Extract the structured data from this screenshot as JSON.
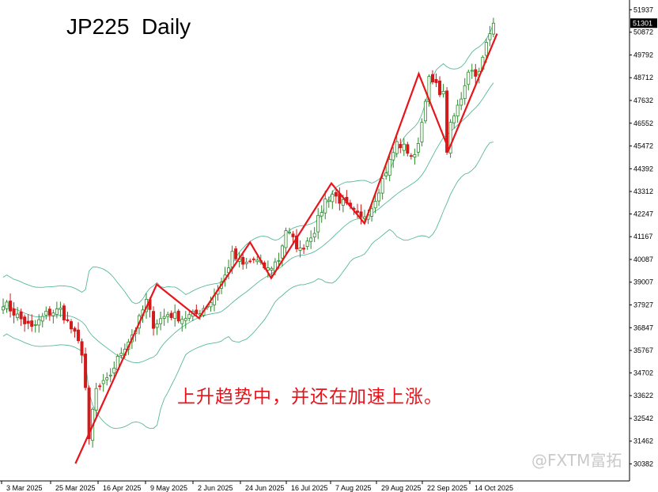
{
  "chart_data": {
    "type": "candlestick",
    "title": "JP225  Daily",
    "annotation": "上升趋势中，并还在加速上涨。",
    "watermark": "@FXTM富拓",
    "y_ticks": [
      51937,
      50872,
      49792,
      48712,
      47632,
      46552,
      45472,
      44392,
      43312,
      42247,
      41167,
      40087,
      39007,
      37927,
      36847,
      35767,
      34702,
      33622,
      32542,
      31462,
      30382
    ],
    "x_tick_labels": [
      "3 Mar 2025",
      "25 Mar 2025",
      "16 Apr 2025",
      "9 May 2025",
      "2 Jun 2025",
      "24 Jun 2025",
      "16 Jul 2025",
      "7 Aug 2025",
      "29 Aug 2025",
      "22 Sep 2025",
      "14 Oct 2025"
    ],
    "ylim": [
      30100,
      52250
    ],
    "last_price": 51301,
    "close_path": [
      {
        "i": 0,
        "c": 38050
      },
      {
        "i": 4,
        "c": 37400
      },
      {
        "i": 8,
        "c": 36800
      },
      {
        "i": 12,
        "c": 37500
      },
      {
        "i": 16,
        "c": 37700
      },
      {
        "i": 18,
        "c": 37100
      },
      {
        "i": 20,
        "c": 36500
      },
      {
        "i": 22,
        "c": 35700
      },
      {
        "i": 23,
        "c": 34000
      },
      {
        "i": 24,
        "c": 31400
      },
      {
        "i": 25,
        "c": 32900
      },
      {
        "i": 26,
        "c": 33900
      },
      {
        "i": 29,
        "c": 34300
      },
      {
        "i": 33,
        "c": 35700
      },
      {
        "i": 37,
        "c": 36800
      },
      {
        "i": 40,
        "c": 38100
      },
      {
        "i": 42,
        "c": 37000
      },
      {
        "i": 46,
        "c": 37500
      },
      {
        "i": 50,
        "c": 37300
      },
      {
        "i": 54,
        "c": 37500
      },
      {
        "i": 58,
        "c": 38100
      },
      {
        "i": 62,
        "c": 39300
      },
      {
        "i": 64,
        "c": 40300
      },
      {
        "i": 67,
        "c": 39800
      },
      {
        "i": 70,
        "c": 40100
      },
      {
        "i": 74,
        "c": 39600
      },
      {
        "i": 77,
        "c": 40100
      },
      {
        "i": 79,
        "c": 41500
      },
      {
        "i": 83,
        "c": 40500
      },
      {
        "i": 87,
        "c": 41500
      },
      {
        "i": 90,
        "c": 42900
      },
      {
        "i": 92,
        "c": 43200
      },
      {
        "i": 96,
        "c": 42600
      },
      {
        "i": 100,
        "c": 42000
      },
      {
        "i": 103,
        "c": 42600
      },
      {
        "i": 107,
        "c": 44300
      },
      {
        "i": 110,
        "c": 45600
      },
      {
        "i": 112,
        "c": 45400
      },
      {
        "i": 115,
        "c": 44900
      },
      {
        "i": 117,
        "c": 46600
      },
      {
        "i": 118,
        "c": 47800
      },
      {
        "i": 119,
        "c": 48600
      },
      {
        "i": 121,
        "c": 48300
      },
      {
        "i": 123,
        "c": 47900
      },
      {
        "i": 124,
        "c": 45300
      },
      {
        "i": 125,
        "c": 46400
      },
      {
        "i": 128,
        "c": 47800
      },
      {
        "i": 130,
        "c": 49100
      },
      {
        "i": 133,
        "c": 48900
      },
      {
        "i": 135,
        "c": 50300
      },
      {
        "i": 137,
        "c": 51301
      }
    ],
    "trend_lines": [
      {
        "points": [
          [
            24,
            30400
          ],
          [
            51,
            38900
          ],
          [
            65,
            37300
          ],
          [
            82,
            40900
          ],
          [
            89,
            39200
          ],
          [
            109,
            43700
          ],
          [
            120,
            41800
          ],
          [
            138,
            48900
          ],
          [
            148,
            45300
          ],
          [
            164,
            50800
          ]
        ]
      }
    ],
    "colors": {
      "bull": "#2a8a2a",
      "bear": "#d11a1a",
      "bands": "#57b89a",
      "trend": "#e8141b"
    }
  }
}
